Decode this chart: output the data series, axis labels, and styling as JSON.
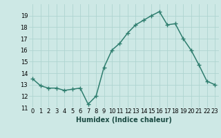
{
  "x": [
    0,
    1,
    2,
    3,
    4,
    5,
    6,
    7,
    8,
    9,
    10,
    11,
    12,
    13,
    14,
    15,
    16,
    17,
    18,
    19,
    20,
    21,
    22,
    23
  ],
  "y": [
    13.5,
    12.9,
    12.7,
    12.7,
    12.5,
    12.6,
    12.7,
    11.3,
    12.0,
    14.5,
    16.0,
    16.6,
    17.5,
    18.2,
    18.6,
    19.0,
    19.35,
    18.2,
    18.3,
    17.0,
    16.0,
    14.7,
    13.3,
    13.0
  ],
  "line_color": "#2e7d6e",
  "marker": "+",
  "marker_size": 4,
  "bg_color": "#cde8e5",
  "grid_color": "#aed4d0",
  "xlabel": "Humidex (Indice chaleur)",
  "ylim": [
    11,
    20
  ],
  "xlim": [
    -0.5,
    23.5
  ],
  "yticks": [
    11,
    12,
    13,
    14,
    15,
    16,
    17,
    18,
    19
  ],
  "tick_fontsize": 6,
  "xlabel_fontsize": 7,
  "line_width": 1.1,
  "marker_edge_width": 1.0
}
